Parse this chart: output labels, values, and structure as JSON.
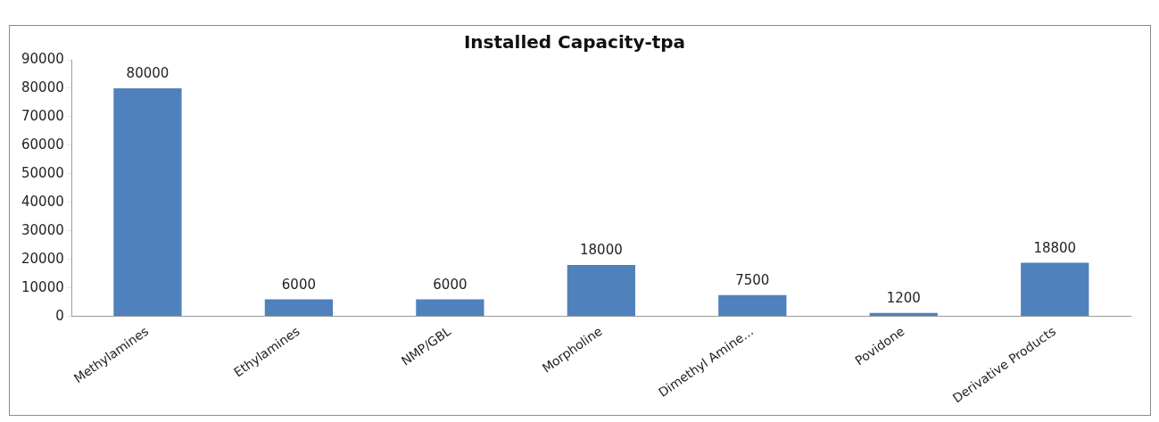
{
  "chart_data": {
    "type": "bar",
    "title": "Installed Capacity-tpa",
    "categories": [
      "Methylamines",
      "Ethylamines",
      "NMP/GBL",
      "Morpholine",
      "Dimethyl Amine...",
      "Povidone",
      "Derivative Products"
    ],
    "values": [
      80000,
      6000,
      6000,
      18000,
      7500,
      1200,
      18800
    ],
    "color": "#4f81bd",
    "ylim": [
      0,
      90000
    ],
    "yticks": [
      0,
      10000,
      20000,
      30000,
      40000,
      50000,
      60000,
      70000,
      80000,
      90000
    ],
    "grid": false,
    "legend": false,
    "data_labels": true
  }
}
